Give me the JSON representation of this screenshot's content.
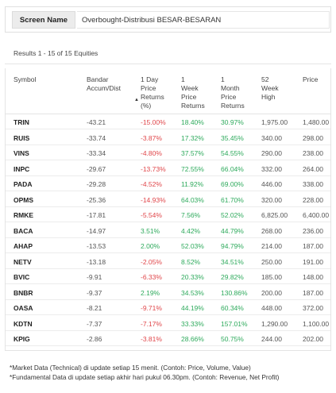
{
  "header": {
    "screen_label": "Screen Name",
    "screen_value": "Overbought-Distribusi BESAR-BESARAN"
  },
  "results_text": "Results 1 - 15 of 15 Equities",
  "columns": [
    "Symbol",
    "Bandar\nAccum/Dist",
    "1 Day\nPrice\nReturns\n(%)",
    "1\nWeek\nPrice\nReturns",
    "1\nMonth\nPrice\nReturns",
    "52\nWeek\nHigh",
    "Price"
  ],
  "sort_indicator": "▲",
  "rows": [
    {
      "symbol": "TRIN",
      "bandar": "-43.21",
      "day": "-15.00%",
      "week": "18.40%",
      "month": "30.97%",
      "high": "1,975.00",
      "price": "1,480.00"
    },
    {
      "symbol": "RUIS",
      "bandar": "-33.74",
      "day": "-3.87%",
      "week": "17.32%",
      "month": "35.45%",
      "high": "340.00",
      "price": "298.00"
    },
    {
      "symbol": "VINS",
      "bandar": "-33.34",
      "day": "-4.80%",
      "week": "37.57%",
      "month": "54.55%",
      "high": "290.00",
      "price": "238.00"
    },
    {
      "symbol": "INPC",
      "bandar": "-29.67",
      "day": "-13.73%",
      "week": "72.55%",
      "month": "66.04%",
      "high": "332.00",
      "price": "264.00"
    },
    {
      "symbol": "PADA",
      "bandar": "-29.28",
      "day": "-4.52%",
      "week": "11.92%",
      "month": "69.00%",
      "high": "446.00",
      "price": "338.00"
    },
    {
      "symbol": "OPMS",
      "bandar": "-25.36",
      "day": "-14.93%",
      "week": "64.03%",
      "month": "61.70%",
      "high": "320.00",
      "price": "228.00"
    },
    {
      "symbol": "RMKE",
      "bandar": "-17.81",
      "day": "-5.54%",
      "week": "7.56%",
      "month": "52.02%",
      "high": "6,825.00",
      "price": "6,400.00"
    },
    {
      "symbol": "BACA",
      "bandar": "-14.97",
      "day": "3.51%",
      "week": "4.42%",
      "month": "44.79%",
      "high": "268.00",
      "price": "236.00"
    },
    {
      "symbol": "AHAP",
      "bandar": "-13.53",
      "day": "2.00%",
      "week": "52.03%",
      "month": "94.79%",
      "high": "214.00",
      "price": "187.00"
    },
    {
      "symbol": "NETV",
      "bandar": "-13.18",
      "day": "-2.05%",
      "week": "8.52%",
      "month": "34.51%",
      "high": "250.00",
      "price": "191.00"
    },
    {
      "symbol": "BVIC",
      "bandar": "-9.91",
      "day": "-6.33%",
      "week": "20.33%",
      "month": "29.82%",
      "high": "185.00",
      "price": "148.00"
    },
    {
      "symbol": "BNBR",
      "bandar": "-9.37",
      "day": "2.19%",
      "week": "34.53%",
      "month": "130.86%",
      "high": "200.00",
      "price": "187.00"
    },
    {
      "symbol": "OASA",
      "bandar": "-8.21",
      "day": "-9.71%",
      "week": "44.19%",
      "month": "60.34%",
      "high": "448.00",
      "price": "372.00"
    },
    {
      "symbol": "KDTN",
      "bandar": "-7.37",
      "day": "-7.17%",
      "week": "33.33%",
      "month": "157.01%",
      "high": "1,290.00",
      "price": "1,100.00"
    },
    {
      "symbol": "KPIG",
      "bandar": "-2.86",
      "day": "-3.81%",
      "week": "28.66%",
      "month": "50.75%",
      "high": "244.00",
      "price": "202.00"
    }
  ],
  "footnotes": [
    "*Market Data (Technical) di update setiap 15 menit. (Contoh: Price, Volume, Value)",
    "*Fundamental Data di update setiap akhir hari pukul 06.30pm. (Contoh: Revenue, Net Profit)"
  ],
  "colors": {
    "negative": "#e0464a",
    "positive": "#2eaa5c"
  }
}
